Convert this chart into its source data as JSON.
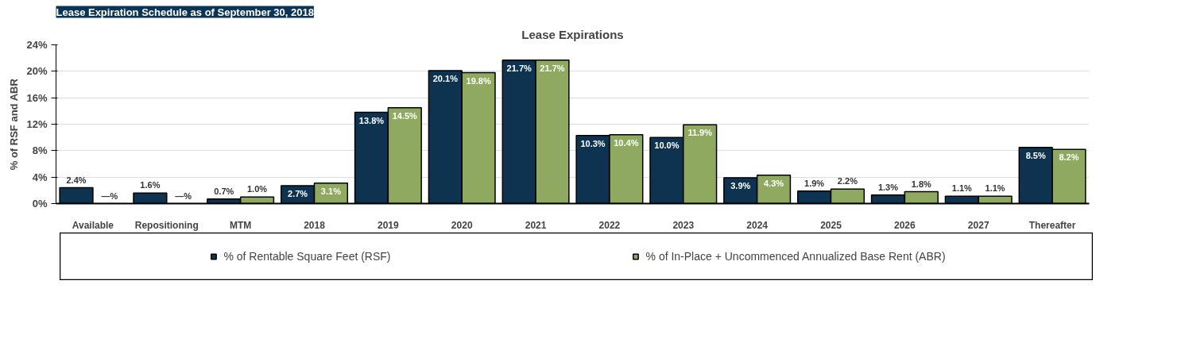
{
  "chart_data": {
    "type": "bar",
    "title": "Lease Expirations",
    "subtitle": "Lease Expiration Schedule as of September 30, 2018",
    "ylabel": "% of RSF and ABR",
    "categories": [
      "Available",
      "Repositioning",
      "MTM",
      "2018",
      "2019",
      "2020",
      "2021",
      "2022",
      "2023",
      "2024",
      "2025",
      "2026",
      "2027",
      "Thereafter"
    ],
    "series": [
      {
        "name": "% of Rentable Square Feet (RSF)",
        "color": "#0e3351",
        "values": [
          2.4,
          1.6,
          0.7,
          2.7,
          13.8,
          20.1,
          21.7,
          10.3,
          10.0,
          3.9,
          1.9,
          1.3,
          1.1,
          8.5
        ],
        "value_labels": [
          "2.4%",
          "1.6%",
          "0.7%",
          "2.7%",
          "13.8%",
          "20.1%",
          "21.7%",
          "10.3%",
          "10.0%",
          "3.9%",
          "1.9%",
          "1.3%",
          "1.1%",
          "8.5%"
        ]
      },
      {
        "name": "% of In-Place + Uncommenced Annualized Base Rent (ABR)",
        "color": "#8fa960",
        "values": [
          0,
          0,
          1.0,
          3.1,
          14.5,
          19.8,
          21.7,
          10.4,
          11.9,
          4.3,
          2.2,
          1.8,
          1.1,
          8.2
        ],
        "value_labels": [
          "—%",
          "—%",
          "1.0%",
          "3.1%",
          "14.5%",
          "19.8%",
          "21.7%",
          "10.4%",
          "11.9%",
          "4.3%",
          "2.2%",
          "1.8%",
          "1.1%",
          "8.2%"
        ]
      }
    ],
    "ylim": [
      0,
      24
    ],
    "yticks": [
      {
        "value": 0,
        "label": "0%"
      },
      {
        "value": 4,
        "label": "4%"
      },
      {
        "value": 8,
        "label": "8%"
      },
      {
        "value": 12,
        "label": "12%"
      },
      {
        "value": 16,
        "label": "16%"
      },
      {
        "value": 20,
        "label": "20%"
      },
      {
        "value": 24,
        "label": "24%"
      }
    ],
    "grid": "y",
    "legend": "bottom"
  }
}
